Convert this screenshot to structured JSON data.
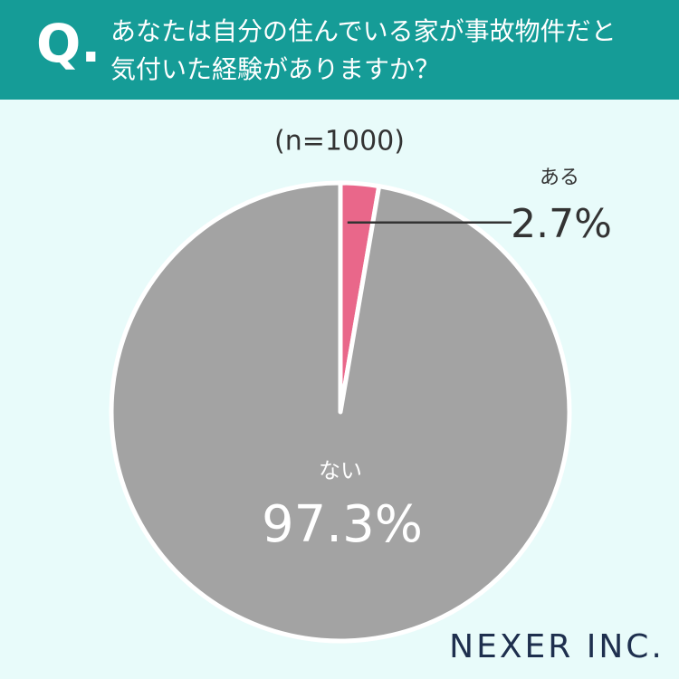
{
  "question_marker": "Q.",
  "brand": "NEXER INC.",
  "chart_data": {
    "type": "pie",
    "title": "あなたは自分の住んでいる家が事故物件だと気付いた経験がありますか？",
    "subtitle": "(n=1000)",
    "categories": [
      "ある",
      "ない"
    ],
    "values": [
      2.7,
      97.3
    ],
    "value_labels": [
      "2.7%",
      "97.3%"
    ],
    "colors": [
      "#e9678a",
      "#a3a3a3"
    ]
  }
}
